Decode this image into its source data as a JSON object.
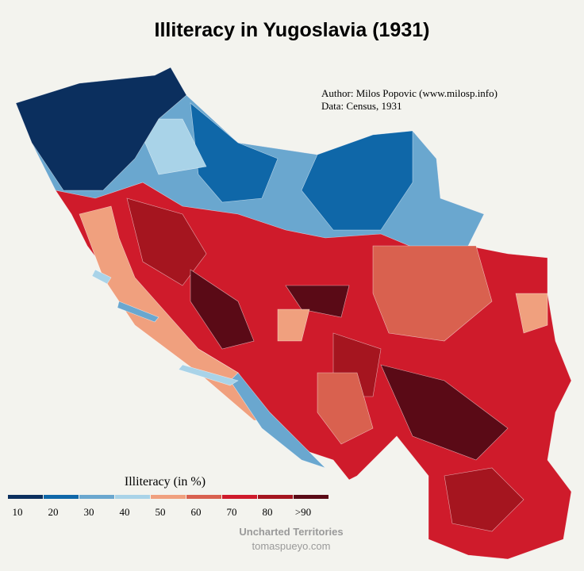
{
  "title": "Illiteracy in Yugoslavia (1931)",
  "credits": {
    "author": "Author: Milos Popovic (www.milosp.info)",
    "data": "Data: Census, 1931"
  },
  "legend": {
    "title": "Illiteracy (in %)",
    "items": [
      {
        "label": "10",
        "color": "#0b2f5e"
      },
      {
        "label": "20",
        "color": "#0f67a8"
      },
      {
        "label": "30",
        "color": "#6aa7cf"
      },
      {
        "label": "40",
        "color": "#a9d3e8"
      },
      {
        "label": "50",
        "color": "#f0a07e"
      },
      {
        "label": "60",
        "color": "#d9614f"
      },
      {
        "label": "70",
        "color": "#cf1b2b"
      },
      {
        "label": "80",
        "color": "#a5151f"
      },
      {
        "label": ">90",
        "color": "#5a0a16"
      }
    ]
  },
  "footer": {
    "brand": "Uncharted Territories",
    "site": "tomaspueyo.com"
  }
}
